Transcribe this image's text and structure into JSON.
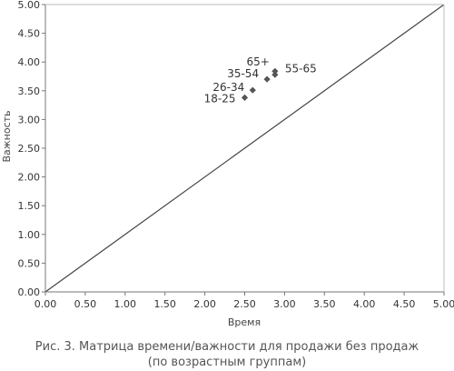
{
  "chart_data": {
    "type": "scatter",
    "xlabel": "Время",
    "ylabel": "Важность",
    "xlim": [
      0,
      5
    ],
    "ylim": [
      0,
      5
    ],
    "xticks": [
      "0.00",
      "0.50",
      "1.00",
      "1.50",
      "2.00",
      "2.50",
      "3.00",
      "3.50",
      "4.00",
      "4.50",
      "5.00"
    ],
    "yticks": [
      "0.00",
      "0.50",
      "1.00",
      "1.50",
      "2.00",
      "2.50",
      "3.00",
      "3.50",
      "4.00",
      "4.50",
      "5.00"
    ],
    "grid": false,
    "reference_line": {
      "x": [
        0,
        5
      ],
      "y": [
        0,
        5
      ]
    },
    "points": [
      {
        "label": "18-25",
        "x": 2.5,
        "y": 3.38
      },
      {
        "label": "26-34",
        "x": 2.6,
        "y": 3.51
      },
      {
        "label": "35-54",
        "x": 2.78,
        "y": 3.7
      },
      {
        "label": "65+",
        "x": 2.88,
        "y": 3.78
      },
      {
        "label": "55-65",
        "x": 2.88,
        "y": 3.84
      }
    ],
    "marker_color": "#555555",
    "line_color": "#444444"
  },
  "caption": {
    "line1": "Рис. 3. Матрица времени/важности для продажи без продаж",
    "line2": "(по возрастным группам)"
  }
}
